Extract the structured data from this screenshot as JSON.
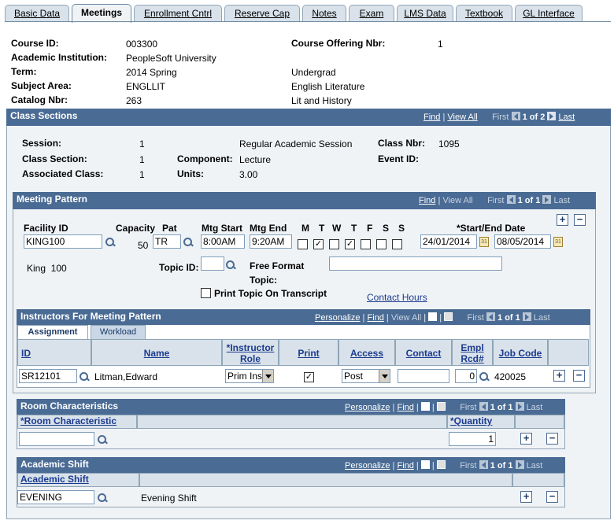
{
  "tabs": [
    "Basic Data",
    "Meetings",
    "Enrollment Cntrl",
    "Reserve Cap",
    "Notes",
    "Exam",
    "LMS Data",
    "Textbook",
    "GL Interface"
  ],
  "course": {
    "course_id_label": "Course ID:",
    "course_id": "003300",
    "offering_label": "Course Offering Nbr:",
    "offering": "1",
    "institution_label": "Academic Institution:",
    "institution": "PeopleSoft University",
    "term_label": "Term:",
    "term": "2014 Spring",
    "career": "Undergrad",
    "subject_label": "Subject Area:",
    "subject": "ENGLLIT",
    "subject_desc": "English Literature",
    "catalog_label": "Catalog Nbr:",
    "catalog": "263",
    "catalog_desc": "Lit and History"
  },
  "class_sections": {
    "title": "Class Sections",
    "find": "Find",
    "view_all": "View All",
    "first": "First",
    "count": "1 of 2",
    "last": "Last",
    "session_label": "Session:",
    "session": "1",
    "session_desc": "Regular Academic Session",
    "class_nbr_label": "Class Nbr:",
    "class_nbr": "1095",
    "section_label": "Class Section:",
    "section": "1",
    "component_label": "Component:",
    "component": "Lecture",
    "event_label": "Event ID:",
    "assoc_label": "Associated Class:",
    "assoc": "1",
    "units_label": "Units:",
    "units": "3.00"
  },
  "meeting_pattern": {
    "title": "Meeting Pattern",
    "find": "Find",
    "view_all": "View All",
    "first": "First",
    "count": "1 of 1",
    "last": "Last",
    "facility_label": "Facility ID",
    "facility": "KING100",
    "capacity_label": "Capacity",
    "capacity": "50",
    "pat_label": "Pat",
    "pat": "TR",
    "start_label": "Mtg Start",
    "start": "8:00AM",
    "end_label": "Mtg End",
    "end": "9:20AM",
    "days": [
      "M",
      "T",
      "W",
      "T",
      "F",
      "S",
      "S"
    ],
    "dates_label": "*Start/End Date",
    "start_date": "24/01/2014",
    "end_date": "08/05/2014",
    "facility_desc": "King  100",
    "topic_label": "Topic ID:",
    "free_topic_label": "Free Format Topic:",
    "print_topic_label": "Print Topic On Transcript",
    "contact_hours": "Contact Hours"
  },
  "instructors": {
    "title": "Instructors For Meeting Pattern",
    "personalize": "Personalize",
    "find": "Find",
    "view_all": "View All",
    "first": "First",
    "count": "1 of 1",
    "last": "Last",
    "tab_assignment": "Assignment",
    "tab_workload": "Workload",
    "columns": [
      "ID",
      "Name",
      "*Instructor Role",
      "Print",
      "Access",
      "Contact",
      "Empl Rcd#",
      "Job Code"
    ],
    "row": {
      "id": "SR12101",
      "name": "Litman,Edward",
      "role": "Prim Ins",
      "access": "Post",
      "contact": "",
      "empl_rcd": "0",
      "job_code": "420025"
    }
  },
  "room": {
    "title": "Room Characteristics",
    "personalize": "Personalize",
    "find": "Find",
    "first": "First",
    "count": "1 of 1",
    "last": "Last",
    "col_char": "*Room Characteristic",
    "col_qty": "*Quantity",
    "quantity": "1"
  },
  "shift": {
    "title": "Academic Shift",
    "personalize": "Personalize",
    "find": "Find",
    "first": "First",
    "count": "1 of 1",
    "last": "Last",
    "col_shift": "Academic Shift",
    "value": "EVENING",
    "desc": "Evening Shift"
  }
}
